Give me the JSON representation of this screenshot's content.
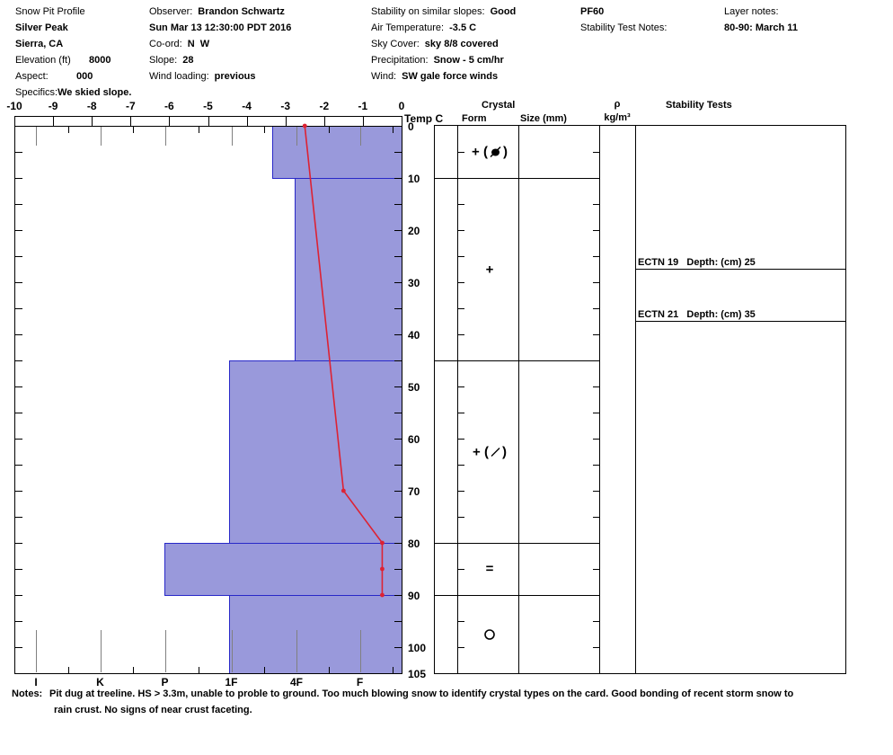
{
  "header": {
    "col1": {
      "title": "Snow Pit Profile",
      "location_name": "Silver Peak",
      "region": "Sierra, CA",
      "elevation_label": "Elevation (ft)",
      "elevation_value": "8000",
      "aspect_label": "Aspect:",
      "aspect_value": "000",
      "specifics_label": "Specifics:",
      "specifics_value": "We skied slope."
    },
    "col2": {
      "observer_label": "Observer:",
      "observer_value": "Brandon Schwartz",
      "datetime": "Sun Mar 13 12:30:00 PDT 2016",
      "coord_label": "Co-ord:",
      "coord_value": "N  W",
      "slope_label": "Slope:",
      "slope_value": "28",
      "wind_loading_label": "Wind loading:",
      "wind_loading_value": "previous"
    },
    "col3": {
      "stability_label": "Stability on similar slopes:",
      "stability_value": "Good",
      "air_temp_label": "Air Temperature:",
      "air_temp_value": "-3.5 C",
      "sky_label": "Sky Cover:",
      "sky_value": "sky 8/8 covered",
      "precip_label": "Precipitation:",
      "precip_value": "Snow - 5 cm/hr",
      "wind_label": "Wind:",
      "wind_value": "SW gale force winds"
    },
    "col4": {
      "pf": "PF60",
      "test_notes_label": "Stability Test Notes:"
    },
    "col5": {
      "layer_notes_label": "Layer notes:",
      "layer_notes_value": "80-90: March 11"
    }
  },
  "column_headers": {
    "temp": "Temp C",
    "crystal": "Crystal",
    "form": "Form",
    "size": "Size (mm)",
    "rho": "ρ",
    "rho_units": "kg/m³",
    "stability": "Stability Tests"
  },
  "notes": {
    "label": "Notes:",
    "lines": [
      "Pit dug at treeline. HS > 3.3m, unable to proble to ground. Too much blowing snow to identify crystal types on the card. Good bonding of recent storm snow to",
      "rain crust. No signs of near crust faceting."
    ]
  },
  "chart_data": {
    "type": "snow-pit-profile",
    "temp_axis": {
      "label": "Temp C",
      "unit": "C",
      "min": -10,
      "max": 0,
      "ticks": [
        -10,
        -9,
        -8,
        -7,
        -6,
        -5,
        -4,
        -3,
        -2,
        -1,
        0
      ]
    },
    "depth_axis": {
      "unit": "cm",
      "min": 0,
      "max": 105,
      "labels": [
        0,
        10,
        20,
        30,
        40,
        50,
        60,
        70,
        80,
        90,
        100,
        105
      ],
      "minor_tick_step_cm": 5
    },
    "hardness_axis": {
      "categories": [
        "I",
        "K",
        "P",
        "1F",
        "4F",
        "F"
      ]
    },
    "layers": [
      {
        "top_cm": 0,
        "bottom_cm": 10,
        "hardness": "4F+",
        "grain_form": "+ (•/)",
        "glyph": "plus-paren-dotslash"
      },
      {
        "top_cm": 10,
        "bottom_cm": 45,
        "hardness": "4F",
        "grain_form": "+",
        "glyph": "plus"
      },
      {
        "top_cm": 45,
        "bottom_cm": 80,
        "hardness": "1F",
        "grain_form": "+ (/)",
        "glyph": "plus-paren-slash"
      },
      {
        "top_cm": 80,
        "bottom_cm": 90,
        "hardness": "P",
        "grain_form": "=",
        "glyph": "equals"
      },
      {
        "top_cm": 90,
        "bottom_cm": 105,
        "hardness": "1F",
        "grain_form": "O",
        "glyph": "circle"
      }
    ],
    "temperature_profile": [
      {
        "depth_cm": 0,
        "temp_c": -2.5
      },
      {
        "depth_cm": 70,
        "temp_c": -1.5
      },
      {
        "depth_cm": 80,
        "temp_c": -0.5
      },
      {
        "depth_cm": 85,
        "temp_c": -0.5
      },
      {
        "depth_cm": 90,
        "temp_c": -0.5
      }
    ],
    "stability_tests": [
      {
        "name": "ECTN 19",
        "depth_label": "Depth: (cm) 25",
        "depth_cm": 25
      },
      {
        "name": "ECTN 21",
        "depth_label": "Depth: (cm) 35",
        "depth_cm": 35
      }
    ],
    "colors": {
      "bar_fill": "#9999db",
      "bar_border": "#2828c8",
      "temp_line": "#dd2233",
      "tick_gray": "#808080"
    }
  }
}
